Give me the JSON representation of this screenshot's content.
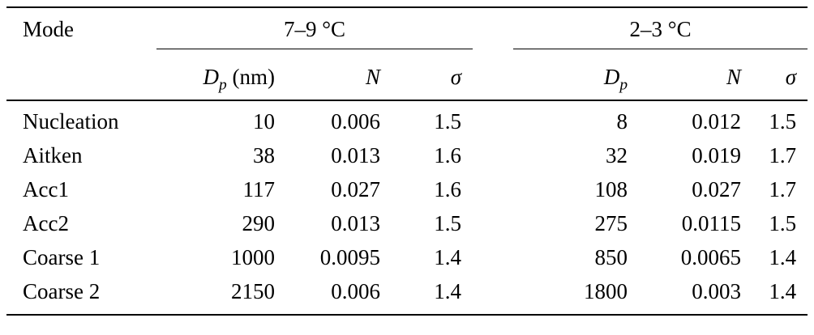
{
  "table": {
    "mode_header": "Mode",
    "groups": [
      {
        "label": "7–9 °C"
      },
      {
        "label": "2–3 °C"
      }
    ],
    "subheaders": {
      "dp_symbol": "D",
      "dp_sub": "p",
      "dp_unit": "(nm)",
      "n": "N",
      "sigma": "σ"
    },
    "rows": [
      {
        "mode": "Nucleation",
        "g1": {
          "dp": "10",
          "n": "0.006",
          "sigma": "1.5"
        },
        "g2": {
          "dp": "8",
          "n": "0.012",
          "sigma": "1.5"
        }
      },
      {
        "mode": "Aitken",
        "g1": {
          "dp": "38",
          "n": "0.013",
          "sigma": "1.6"
        },
        "g2": {
          "dp": "32",
          "n": "0.019",
          "sigma": "1.7"
        }
      },
      {
        "mode": "Acc1",
        "g1": {
          "dp": "117",
          "n": "0.027",
          "sigma": "1.6"
        },
        "g2": {
          "dp": "108",
          "n": "0.027",
          "sigma": "1.7"
        }
      },
      {
        "mode": "Acc2",
        "g1": {
          "dp": "290",
          "n": "0.013",
          "sigma": "1.5"
        },
        "g2": {
          "dp": "275",
          "n": "0.0115",
          "sigma": "1.5"
        }
      },
      {
        "mode": "Coarse 1",
        "g1": {
          "dp": "1000",
          "n": "0.0095",
          "sigma": "1.4"
        },
        "g2": {
          "dp": "850",
          "n": "0.0065",
          "sigma": "1.4"
        }
      },
      {
        "mode": "Coarse 2",
        "g1": {
          "dp": "2150",
          "n": "0.006",
          "sigma": "1.4"
        },
        "g2": {
          "dp": "1800",
          "n": "0.003",
          "sigma": "1.4"
        }
      }
    ]
  }
}
